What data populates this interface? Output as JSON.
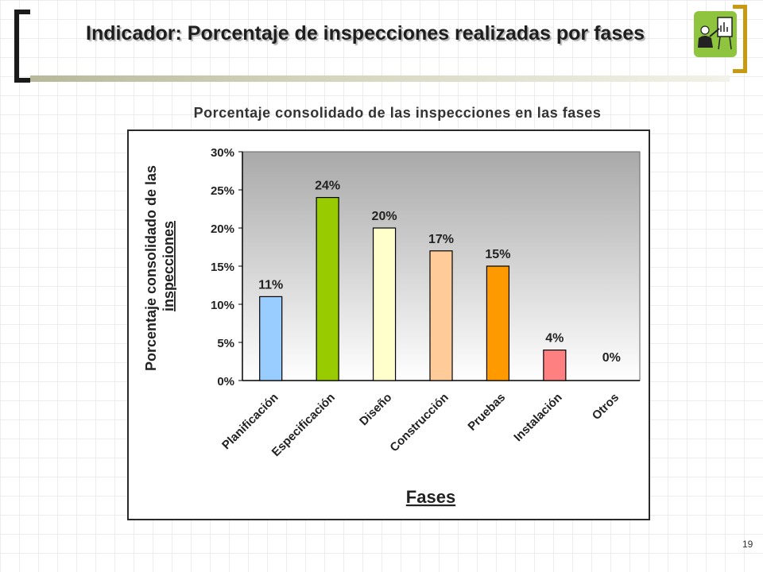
{
  "slide": {
    "title": "Indicador: Porcentaje de inspecciones realizadas por fases",
    "page_number": "19"
  },
  "chart_data": {
    "type": "bar",
    "title": "Porcentaje consolidado de las inspecciones en las fases",
    "xlabel": "Fases",
    "ylabel_lines": [
      "Porcentaje consolidado de las",
      "inspecciones"
    ],
    "categories": [
      "Planificación",
      "Especificación",
      "Diseño",
      "Construcción",
      "Pruebas",
      "Instalación",
      "Otros"
    ],
    "values": [
      11,
      24,
      20,
      17,
      15,
      4,
      0
    ],
    "value_labels": [
      "11%",
      "24%",
      "20%",
      "17%",
      "15%",
      "4%",
      "0%"
    ],
    "bar_colors": [
      "#99ccff",
      "#99cc00",
      "#ffffcc",
      "#ffcc99",
      "#ff9900",
      "#ff8080",
      "#cccccc"
    ],
    "y_ticks": [
      "0%",
      "5%",
      "10%",
      "15%",
      "20%",
      "25%",
      "30%"
    ],
    "ylim": [
      0,
      30
    ],
    "grid": false,
    "legend": "none"
  }
}
